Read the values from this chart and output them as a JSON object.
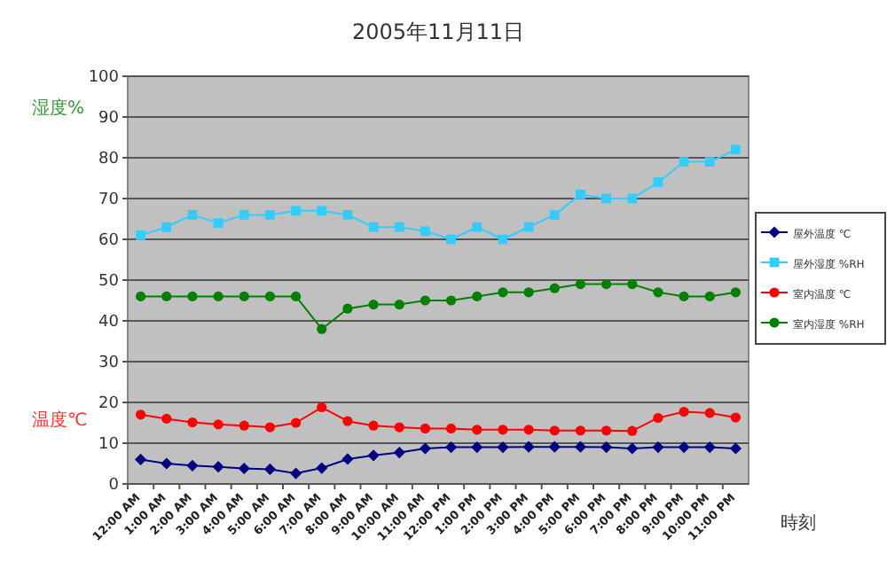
{
  "chart_data": {
    "type": "line",
    "title": "2005年11月11日",
    "xlabel": "時刻",
    "ylabel": "湿度%",
    "annotations": [
      "温度℃"
    ],
    "categories": [
      "12:00 AM",
      "1:00 AM",
      "2:00 AM",
      "3:00 AM",
      "4:00 AM",
      "5:00 AM",
      "6:00 AM",
      "7:00 AM",
      "8:00 AM",
      "9:00 AM",
      "10:00 AM",
      "11:00 AM",
      "12:00 PM",
      "1:00 PM",
      "2:00 PM",
      "3:00 PM",
      "4:00 PM",
      "5:00 PM",
      "6:00 PM",
      "7:00 PM",
      "8:00 PM",
      "9:00 PM",
      "10:00 PM",
      "11:00 PM"
    ],
    "ylim": [
      0,
      100
    ],
    "yticks": [
      0,
      10,
      20,
      30,
      40,
      50,
      60,
      70,
      80,
      90,
      100
    ],
    "grid": "y",
    "legend": "right",
    "series": [
      {
        "name": "屋外温度 ℃",
        "color": "#000080",
        "marker": "diamond",
        "values": [
          6,
          5,
          4.5,
          4.2,
          3.8,
          3.6,
          2.6,
          3.9,
          6.1,
          7,
          7.7,
          8.7,
          9,
          9,
          9,
          9.1,
          9.1,
          9.1,
          9,
          8.7,
          9,
          9,
          9,
          8.7
        ]
      },
      {
        "name": "屋外湿度 %RH",
        "color": "#33ccff",
        "marker": "square",
        "values": [
          61,
          63,
          66,
          64,
          66,
          66,
          67,
          67,
          66,
          63,
          63,
          62,
          60,
          63,
          60,
          63,
          66,
          71,
          70,
          70,
          74,
          79,
          79,
          82
        ]
      },
      {
        "name": "室内温度 ℃",
        "color": "#ff0000",
        "marker": "circle",
        "values": [
          17,
          16,
          15.1,
          14.6,
          14.3,
          13.9,
          15,
          18.8,
          15.4,
          14.3,
          13.9,
          13.6,
          13.6,
          13.3,
          13.3,
          13.3,
          13.1,
          13.1,
          13.1,
          13,
          16.2,
          17.7,
          17.4,
          16.3
        ]
      },
      {
        "name": "室内湿度 %RH",
        "color": "#008000",
        "marker": "circle",
        "values": [
          46,
          46,
          46,
          46,
          46,
          46,
          46,
          38,
          43,
          44,
          44,
          45,
          45,
          46,
          47,
          47,
          48,
          49,
          49,
          49,
          47,
          46,
          46,
          47
        ]
      }
    ]
  }
}
